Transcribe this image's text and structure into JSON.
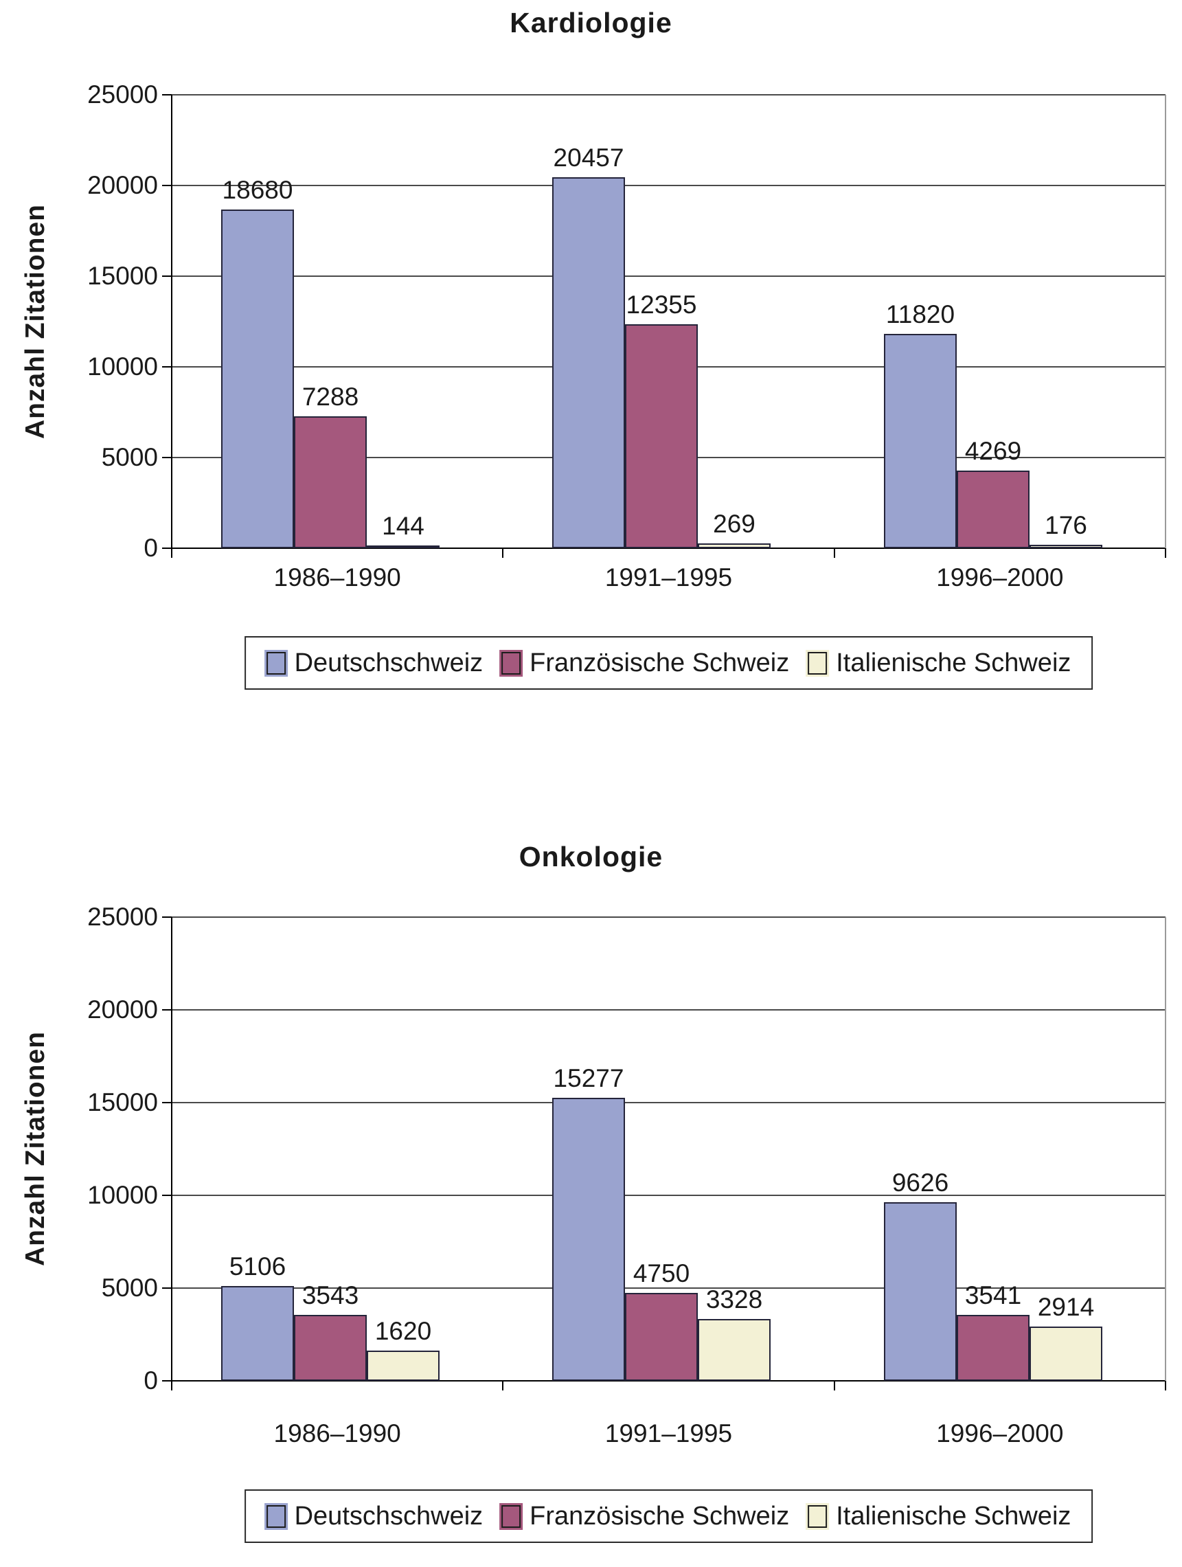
{
  "chart_data": [
    {
      "type": "bar",
      "title": "Kardiologie",
      "ylabel": "Anzahl Zitationen",
      "xlabel": "",
      "categories": [
        "1986–1990",
        "1991–1995",
        "1996–2000"
      ],
      "yticks": [
        "25000",
        "20000",
        "15000",
        "10000",
        "5000",
        "0"
      ],
      "ylim": [
        0,
        25000
      ],
      "grid": true,
      "legend_position": "bottom",
      "series": [
        {
          "name": "Deutschschweiz",
          "color": "#9AA3CF",
          "values": [
            18680,
            20457,
            11820
          ]
        },
        {
          "name": "Französische Schweiz",
          "color": "#A5587D",
          "values": [
            7288,
            12355,
            4269
          ]
        },
        {
          "name": "Italienische Schweiz",
          "color": "#F3F1D5",
          "values": [
            144,
            269,
            176
          ]
        }
      ]
    },
    {
      "type": "bar",
      "title": "Onkologie",
      "ylabel": "Anzahl Zitationen",
      "xlabel": "",
      "categories": [
        "1986–1990",
        "1991–1995",
        "1996–2000"
      ],
      "yticks": [
        "25000",
        "20000",
        "15000",
        "10000",
        "5000",
        "0"
      ],
      "ylim": [
        0,
        25000
      ],
      "grid": true,
      "legend_position": "bottom",
      "series": [
        {
          "name": "Deutschschweiz",
          "color": "#9AA3CF",
          "values": [
            5106,
            15277,
            9626
          ]
        },
        {
          "name": "Französische Schweiz",
          "color": "#A5587D",
          "values": [
            3543,
            4750,
            3541
          ]
        },
        {
          "name": "Italienische Schweiz",
          "color": "#F3F1D5",
          "values": [
            1620,
            3328,
            2914
          ]
        }
      ]
    }
  ]
}
